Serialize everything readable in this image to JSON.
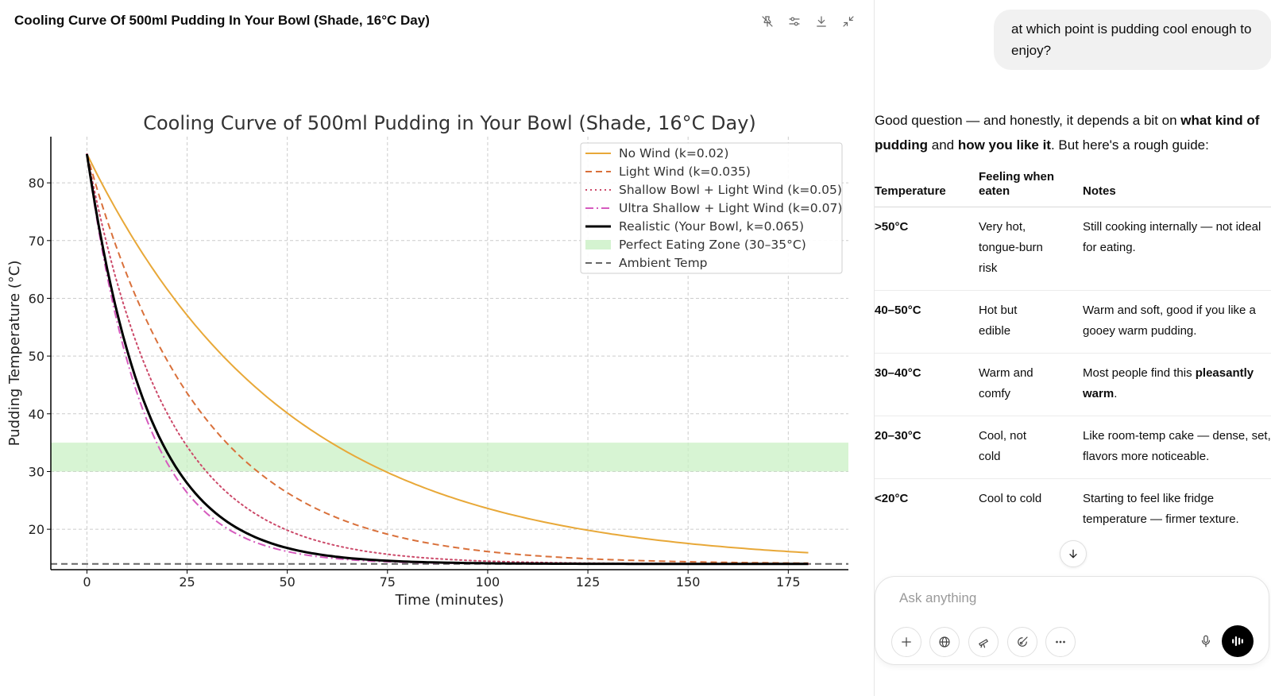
{
  "panel": {
    "title": "Cooling Curve Of 500ml Pudding In Your Bowl (Shade, 16°C Day)",
    "toolbar_icons": [
      "pin-off-icon",
      "sliders-icon",
      "download-icon",
      "collapse-icon"
    ]
  },
  "chart_data": {
    "type": "line",
    "title": "Cooling Curve of 500ml Pudding in Your Bowl (Shade, 16°C Day)",
    "xlabel": "Time (minutes)",
    "ylabel": "Pudding Temperature (°C)",
    "xlim": [
      -9,
      190
    ],
    "ylim": [
      13,
      88
    ],
    "xticks": [
      0,
      25,
      50,
      75,
      100,
      125,
      150,
      175
    ],
    "yticks": [
      20,
      30,
      40,
      50,
      60,
      70,
      80
    ],
    "grid": true,
    "legend_position": "top-right",
    "model": "newton_cooling",
    "initial_temp": 85,
    "ambient_temp": 14,
    "x_range": [
      0,
      180
    ],
    "series": [
      {
        "name": "No Wind (k=0.02)",
        "k": 0.02,
        "color": "#E8A838",
        "style": "solid",
        "width": 2
      },
      {
        "name": "Light Wind (k=0.035)",
        "k": 0.035,
        "color": "#D9703A",
        "style": "dashed",
        "width": 2
      },
      {
        "name": "Shallow Bowl + Light Wind (k=0.05)",
        "k": 0.05,
        "color": "#CC4A6A",
        "style": "dotted",
        "width": 2
      },
      {
        "name": "Ultra Shallow + Light Wind (k=0.07)",
        "k": 0.07,
        "color": "#D65BBE",
        "style": "dashdot",
        "width": 2
      },
      {
        "name": "Realistic (Your Bowl, k=0.065)",
        "k": 0.065,
        "color": "#000000",
        "style": "solid",
        "width": 3
      }
    ],
    "zone": {
      "name": "Perfect Eating Zone (30–35°C)",
      "from": 30,
      "to": 35,
      "color": "#c9f0c4"
    },
    "ambient": {
      "name": "Ambient Temp",
      "value": 14,
      "color": "#666666"
    }
  },
  "conversation": {
    "user_message": "at which point is pudding cool enough to enjoy?",
    "answer": {
      "p1": "Good question — and honestly, it depends a bit on ",
      "b1": "what kind of pudding",
      "p2": " and ",
      "b2": "how you like it",
      "p3": ". But here's a rough guide:"
    },
    "table": {
      "headers": [
        "Temperature",
        "Feeling when eaten",
        "Notes"
      ],
      "rows": [
        {
          "temp": ">50°C",
          "feeling": "Very hot, tongue-burn risk",
          "notes": "Still cooking internally — not ideal for eating."
        },
        {
          "temp": "40–50°C",
          "feeling": "Hot but edible",
          "notes": "Warm and soft, good if you like a gooey warm pudding."
        },
        {
          "temp": "30–40°C",
          "feeling": "Warm and comfy",
          "notes_pre": "Most people find this ",
          "notes_bold": "pleasantly warm",
          "notes_post": "."
        },
        {
          "temp": "20–30°C",
          "feeling": "Cool, not cold",
          "notes": "Like room-temp cake — dense, set, flavors more noticeable."
        },
        {
          "temp": "<20°C",
          "feeling": "Cool to cold",
          "notes": "Starting to feel like fridge temperature — firmer texture."
        }
      ]
    }
  },
  "composer": {
    "placeholder": "Ask anything",
    "value": ""
  }
}
